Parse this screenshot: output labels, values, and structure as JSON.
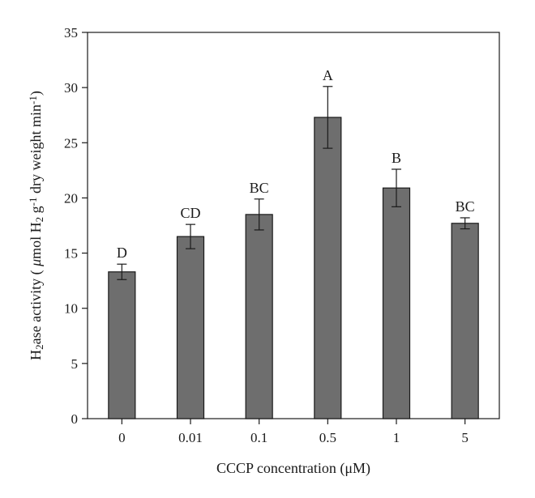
{
  "chart_data": {
    "type": "bar",
    "title": "",
    "xlabel": "CCCP concentration (μM)",
    "ylabel": {
      "parts": [
        {
          "t": "H",
          "s": "n"
        },
        {
          "t": "2",
          "s": "sub"
        },
        {
          "t": "ase activity ( ",
          "s": "n"
        },
        {
          "t": "μ",
          "s": "i"
        },
        {
          "t": "mol H",
          "s": "n"
        },
        {
          "t": "2",
          "s": "sub"
        },
        {
          "t": " g",
          "s": "n"
        },
        {
          "t": "-1",
          "s": "sup"
        },
        {
          "t": " dry weight min",
          "s": "n"
        },
        {
          "t": "-1",
          "s": "sup"
        },
        {
          "t": ")",
          "s": "n"
        }
      ]
    },
    "categories": [
      "0",
      "0.01",
      "0.1",
      "0.5",
      "1",
      "5"
    ],
    "values": [
      13.3,
      16.5,
      18.5,
      27.3,
      20.9,
      17.7
    ],
    "errors": [
      0.7,
      1.1,
      1.4,
      2.8,
      1.7,
      0.5
    ],
    "significance_letters": [
      "D",
      "CD",
      "BC",
      "A",
      "B",
      "BC"
    ],
    "ylim": [
      0,
      35
    ],
    "yticks": [
      0,
      5,
      10,
      15,
      20,
      25,
      30,
      35
    ],
    "grid": false,
    "legend": "none",
    "colors": {
      "bar_fill": "#6e6e6e",
      "bar_stroke": "#1a1a1a",
      "axis": "#1a1a1a"
    }
  }
}
